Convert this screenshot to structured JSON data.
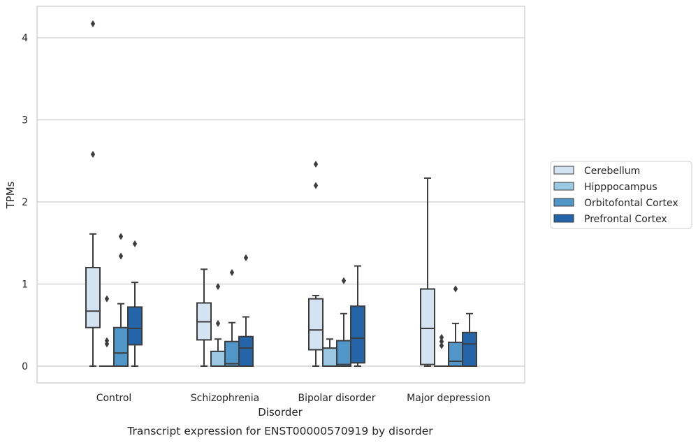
{
  "chart_data": {
    "type": "box",
    "title": "",
    "caption": "Transcript expression for ENST00000570919 by disorder",
    "xlabel": "Disorder",
    "ylabel": "TPMs",
    "ylim": [
      -0.2,
      4.38
    ],
    "yticks": [
      0,
      1,
      2,
      3,
      4
    ],
    "grid": "horizontal",
    "legend_position": "right",
    "categories": [
      "Control",
      "Schizophrenia",
      "Bipolar disorder",
      "Major depression"
    ],
    "series": [
      {
        "name": "Cerebellum",
        "color": "#d3e3f1",
        "boxes": [
          {
            "whislo": 0.0,
            "q1": 0.47,
            "med": 0.67,
            "q3": 1.2,
            "whishi": 1.61,
            "fliers": [
              2.58,
              4.17
            ]
          },
          {
            "whislo": 0.0,
            "q1": 0.32,
            "med": 0.54,
            "q3": 0.77,
            "whishi": 1.18,
            "fliers": []
          },
          {
            "whislo": 0.0,
            "q1": 0.2,
            "med": 0.44,
            "q3": 0.82,
            "whishi": 0.86,
            "fliers": [
              2.2,
              2.46
            ]
          },
          {
            "whislo": 0.0,
            "q1": 0.02,
            "med": 0.46,
            "q3": 0.94,
            "whishi": 2.29,
            "fliers": []
          }
        ]
      },
      {
        "name": "Hipppocampus",
        "color": "#9ac7e1",
        "boxes": [
          {
            "whislo": 0.0,
            "q1": 0.0,
            "med": 0.0,
            "q3": 0.0,
            "whishi": 0.0,
            "fliers": [
              0.27,
              0.31,
              0.82
            ]
          },
          {
            "whislo": 0.0,
            "q1": 0.0,
            "med": 0.0,
            "q3": 0.18,
            "whishi": 0.33,
            "fliers": [
              0.52,
              0.97
            ]
          },
          {
            "whislo": 0.0,
            "q1": 0.0,
            "med": 0.0,
            "q3": 0.22,
            "whishi": 0.33,
            "fliers": []
          },
          {
            "whislo": 0.0,
            "q1": 0.0,
            "med": 0.0,
            "q3": 0.0,
            "whishi": 0.0,
            "fliers": [
              0.25,
              0.3,
              0.35
            ]
          }
        ]
      },
      {
        "name": "Orbitofontal Cortex",
        "color": "#5196c8",
        "boxes": [
          {
            "whislo": 0.0,
            "q1": 0.0,
            "med": 0.16,
            "q3": 0.47,
            "whishi": 0.76,
            "fliers": [
              1.34,
              1.58
            ]
          },
          {
            "whislo": 0.0,
            "q1": 0.0,
            "med": 0.03,
            "q3": 0.3,
            "whishi": 0.53,
            "fliers": [
              1.14
            ]
          },
          {
            "whislo": 0.0,
            "q1": 0.0,
            "med": 0.02,
            "q3": 0.31,
            "whishi": 0.64,
            "fliers": [
              1.04
            ]
          },
          {
            "whislo": 0.0,
            "q1": 0.0,
            "med": 0.06,
            "q3": 0.29,
            "whishi": 0.52,
            "fliers": [
              0.94
            ]
          }
        ]
      },
      {
        "name": "Prefrontal Cortex",
        "color": "#2464a8",
        "boxes": [
          {
            "whislo": 0.0,
            "q1": 0.26,
            "med": 0.46,
            "q3": 0.72,
            "whishi": 1.02,
            "fliers": [
              1.49
            ]
          },
          {
            "whislo": 0.0,
            "q1": 0.0,
            "med": 0.22,
            "q3": 0.36,
            "whishi": 0.6,
            "fliers": [
              1.32
            ]
          },
          {
            "whislo": 0.0,
            "q1": 0.04,
            "med": 0.34,
            "q3": 0.73,
            "whishi": 1.22,
            "fliers": []
          },
          {
            "whislo": 0.0,
            "q1": 0.0,
            "med": 0.27,
            "q3": 0.41,
            "whishi": 0.64,
            "fliers": []
          }
        ]
      }
    ]
  }
}
